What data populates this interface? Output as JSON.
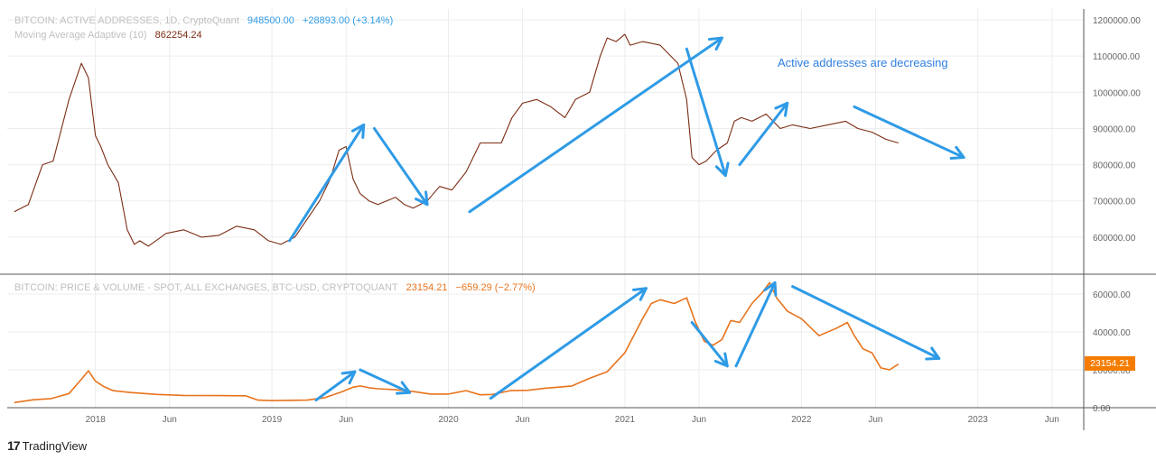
{
  "top_legend": {
    "title": "BITCOIN: ACTIVE ADDRESSES, 1D, CryptoQuant",
    "value": "948500.00",
    "change": "+28893.00 (+3.14%)",
    "ma_label": "Moving Average Adaptive (10)",
    "ma_value": "862254.24"
  },
  "bottom_legend": {
    "title": "BITCOIN: PRICE & VOLUME - SPOT, ALL EXCHANGES, BTC-USD, CRYPTOQUANT",
    "value": "23154.21",
    "change": "−659.29 (−2.77%)"
  },
  "annotation": "Active addresses are decreasing",
  "price_badge": "23154.21",
  "brand": {
    "logo": "17",
    "name": "TradingView"
  },
  "colors": {
    "addresses": "#7b2d14",
    "price": "#e8731c",
    "arrows": "#2f9be6",
    "grid": "#ededed"
  },
  "chart_data": [
    {
      "type": "line",
      "title": "BITCOIN: ACTIVE ADDRESSES, 1D, CryptoQuant",
      "series": [
        {
          "name": "Moving Average Adaptive (10)",
          "x": [
            2017.54,
            2017.62,
            2017.7,
            2017.76,
            2017.85,
            2017.92,
            2017.96,
            2018.0,
            2018.03,
            2018.07,
            2018.13,
            2018.18,
            2018.22,
            2018.25,
            2018.3,
            2018.4,
            2018.5,
            2018.6,
            2018.7,
            2018.8,
            2018.9,
            2018.98,
            2019.05,
            2019.13,
            2019.2,
            2019.27,
            2019.33,
            2019.38,
            2019.42,
            2019.46,
            2019.5,
            2019.55,
            2019.6,
            2019.65,
            2019.7,
            2019.75,
            2019.8,
            2019.88,
            2019.95,
            2020.02,
            2020.1,
            2020.18,
            2020.24,
            2020.3,
            2020.36,
            2020.42,
            2020.5,
            2020.58,
            2020.66,
            2020.72,
            2020.8,
            2020.86,
            2020.9,
            2020.95,
            2021.0,
            2021.03,
            2021.1,
            2021.2,
            2021.3,
            2021.35,
            2021.38,
            2021.42,
            2021.46,
            2021.52,
            2021.58,
            2021.62,
            2021.66,
            2021.72,
            2021.8,
            2021.88,
            2021.95,
            2022.05,
            2022.15,
            2022.25,
            2022.32,
            2022.4,
            2022.48,
            2022.55
          ],
          "values": [
            670000,
            690000,
            800000,
            810000,
            980000,
            1080000,
            1040000,
            880000,
            850000,
            800000,
            750000,
            620000,
            580000,
            590000,
            575000,
            610000,
            620000,
            600000,
            605000,
            630000,
            620000,
            590000,
            580000,
            600000,
            650000,
            700000,
            760000,
            840000,
            850000,
            760000,
            720000,
            700000,
            690000,
            700000,
            710000,
            690000,
            680000,
            700000,
            740000,
            730000,
            780000,
            860000,
            860000,
            860000,
            930000,
            970000,
            980000,
            960000,
            930000,
            980000,
            1000000,
            1100000,
            1150000,
            1140000,
            1160000,
            1130000,
            1140000,
            1130000,
            1080000,
            980000,
            820000,
            800000,
            810000,
            840000,
            860000,
            920000,
            930000,
            920000,
            940000,
            900000,
            910000,
            900000,
            910000,
            920000,
            900000,
            890000,
            870000,
            860000
          ]
        }
      ],
      "ylim": [
        500000,
        1230000
      ],
      "y_ticks": [
        "600000.00",
        "700000.00",
        "800000.00",
        "900000.00",
        "1000000.00",
        "1100000.00",
        "1200000.00"
      ]
    },
    {
      "type": "line",
      "title": "BITCOIN: PRICE & VOLUME - SPOT, ALL EXCHANGES, BTC-USD, CRYPTOQUANT",
      "series": [
        {
          "name": "",
          "x": [
            2017.54,
            2017.65,
            2017.75,
            2017.85,
            2017.92,
            2017.96,
            2018.0,
            2018.05,
            2018.1,
            2018.2,
            2018.35,
            2018.5,
            2018.7,
            2018.85,
            2018.92,
            2019.0,
            2019.2,
            2019.3,
            2019.4,
            2019.46,
            2019.5,
            2019.55,
            2019.6,
            2019.7,
            2019.8,
            2019.9,
            2020.0,
            2020.1,
            2020.18,
            2020.25,
            2020.35,
            2020.45,
            2020.55,
            2020.7,
            2020.8,
            2020.9,
            2021.0,
            2021.05,
            2021.1,
            2021.15,
            2021.2,
            2021.28,
            2021.35,
            2021.4,
            2021.45,
            2021.5,
            2021.55,
            2021.6,
            2021.65,
            2021.72,
            2021.78,
            2021.82,
            2021.86,
            2021.92,
            2022.0,
            2022.1,
            2022.2,
            2022.26,
            2022.3,
            2022.35,
            2022.4,
            2022.45,
            2022.5,
            2022.55
          ],
          "values": [
            2700,
            4200,
            4800,
            7500,
            15000,
            19500,
            14000,
            11000,
            9000,
            8000,
            7000,
            6500,
            6400,
            6300,
            4000,
            3700,
            4000,
            5300,
            8500,
            10800,
            11500,
            10500,
            10000,
            9500,
            8500,
            7200,
            7200,
            9000,
            6800,
            7000,
            9000,
            9200,
            10300,
            11500,
            15500,
            19000,
            29000,
            38000,
            47000,
            55000,
            57000,
            55000,
            58000,
            45000,
            35000,
            33000,
            36000,
            46000,
            45000,
            55000,
            61000,
            66000,
            58000,
            51000,
            47000,
            38000,
            42000,
            45000,
            38000,
            31000,
            29000,
            21000,
            20000,
            23000
          ]
        }
      ],
      "ylim": [
        0,
        70000
      ],
      "y_ticks": [
        "0.00",
        "20000.00",
        "40000.00",
        "60000.00"
      ]
    }
  ],
  "x_axis_labels": [
    {
      "label": "2018",
      "x": 2018.0
    },
    {
      "label": "Jun",
      "x": 2018.42
    },
    {
      "label": "2019",
      "x": 2019.0
    },
    {
      "label": "Jun",
      "x": 2019.42
    },
    {
      "label": "2020",
      "x": 2020.0
    },
    {
      "label": "Jun",
      "x": 2020.42
    },
    {
      "label": "2021",
      "x": 2021.0
    },
    {
      "label": "Jun",
      "x": 2021.42
    },
    {
      "label": "2022",
      "x": 2022.0
    },
    {
      "label": "Jun",
      "x": 2022.42
    },
    {
      "label": "2023",
      "x": 2023.0
    },
    {
      "label": "Jun",
      "x": 2023.42
    }
  ],
  "arrows": [
    {
      "pane": 0,
      "from": [
        2019.1,
        590000
      ],
      "to": [
        2019.52,
        910000
      ]
    },
    {
      "pane": 0,
      "from": [
        2019.58,
        900000
      ],
      "to": [
        2019.88,
        690000
      ]
    },
    {
      "pane": 0,
      "from": [
        2020.12,
        670000
      ],
      "to": [
        2021.55,
        1150000
      ]
    },
    {
      "pane": 0,
      "from": [
        2021.35,
        1120000
      ],
      "to": [
        2021.57,
        770000
      ]
    },
    {
      "pane": 0,
      "from": [
        2021.65,
        800000
      ],
      "to": [
        2021.92,
        970000
      ]
    },
    {
      "pane": 0,
      "from": [
        2022.3,
        960000
      ],
      "to": [
        2022.92,
        820000
      ]
    },
    {
      "pane": 1,
      "from": [
        2019.25,
        4000
      ],
      "to": [
        2019.47,
        19000
      ]
    },
    {
      "pane": 1,
      "from": [
        2019.5,
        20000
      ],
      "to": [
        2019.78,
        8000
      ]
    },
    {
      "pane": 1,
      "from": [
        2020.24,
        5000
      ],
      "to": [
        2021.12,
        63000
      ]
    },
    {
      "pane": 1,
      "from": [
        2021.38,
        45000
      ],
      "to": [
        2021.58,
        22000
      ]
    },
    {
      "pane": 1,
      "from": [
        2021.63,
        22000
      ],
      "to": [
        2021.85,
        66000
      ]
    },
    {
      "pane": 1,
      "from": [
        2021.95,
        64000
      ],
      "to": [
        2022.78,
        26000
      ]
    }
  ]
}
